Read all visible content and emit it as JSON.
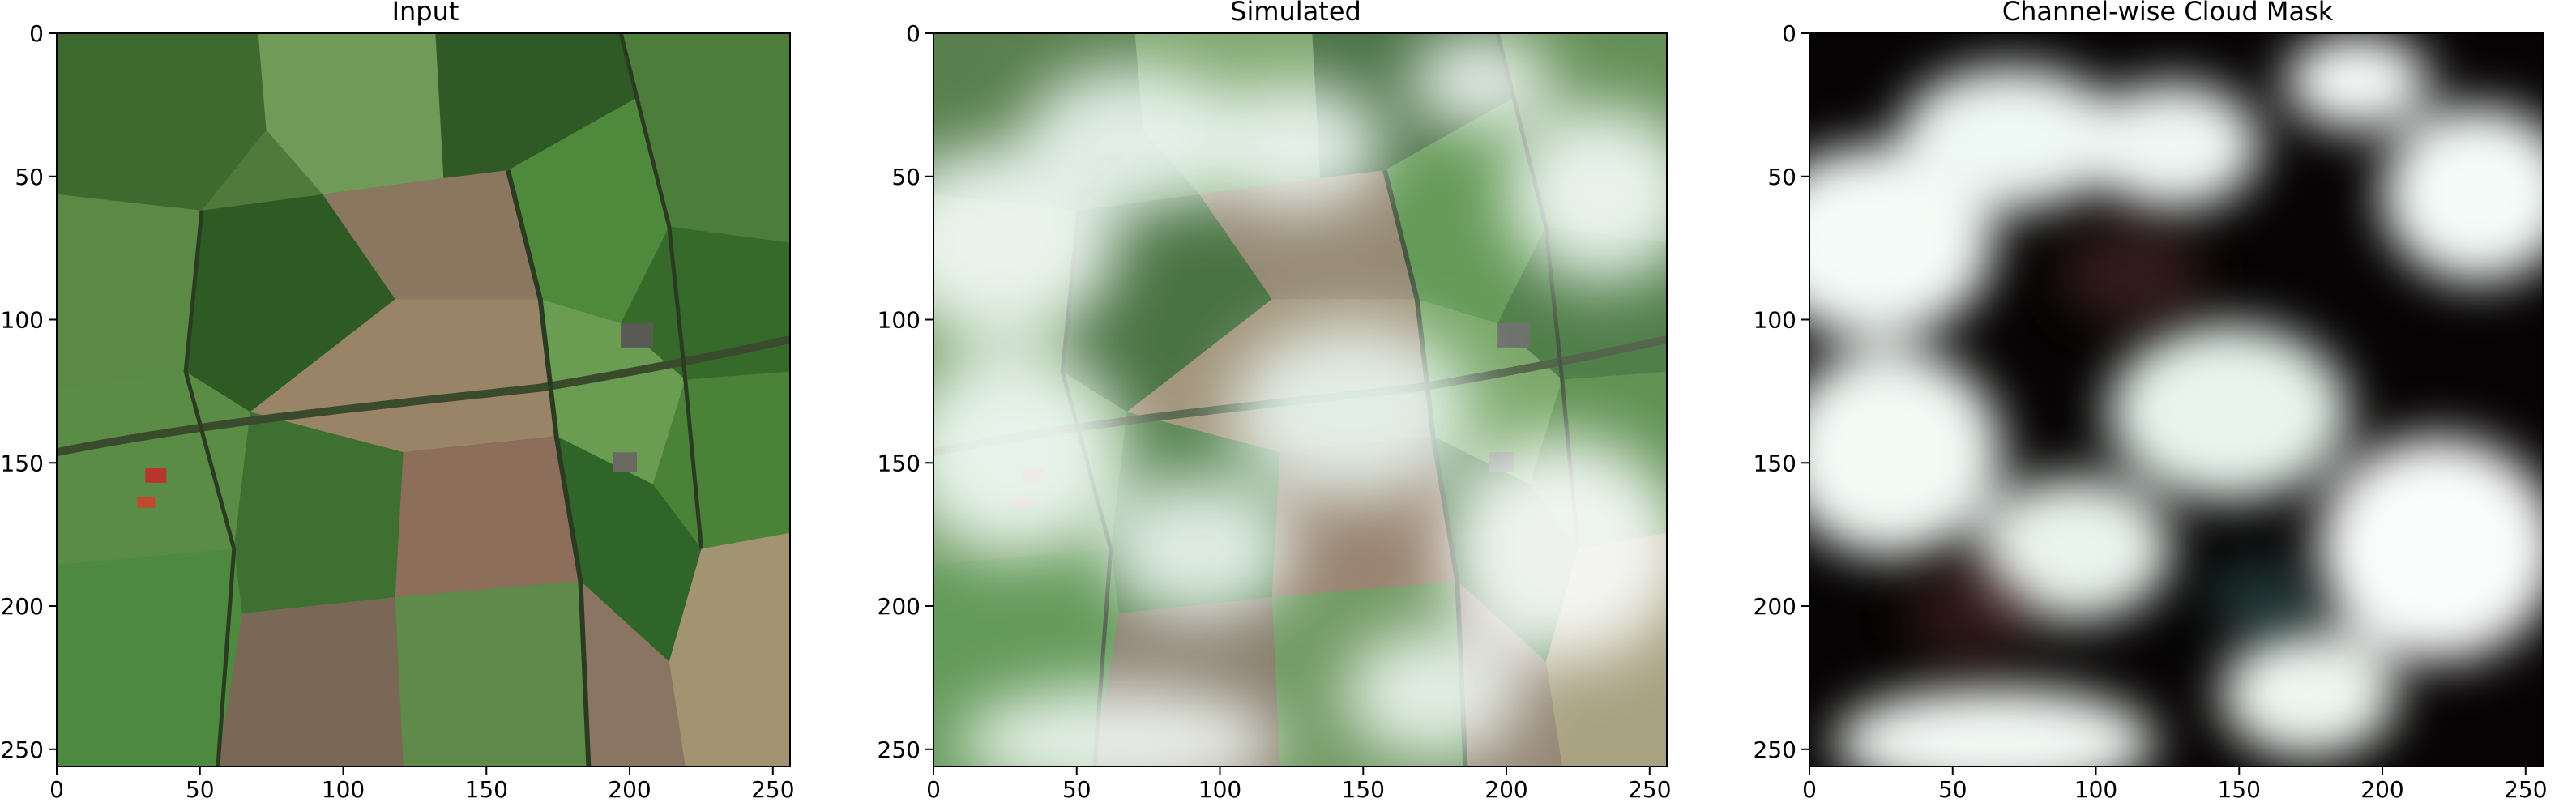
{
  "figure": {
    "panels": [
      {
        "title": "Input",
        "image": "satellite-rgb-farmland",
        "xticks": [
          "0",
          "50",
          "100",
          "150",
          "200",
          "250"
        ],
        "yticks": [
          "0",
          "50",
          "100",
          "150",
          "200",
          "250"
        ]
      },
      {
        "title": "Simulated",
        "image": "satellite-rgb-with-simulated-clouds",
        "xticks": [
          "0",
          "50",
          "100",
          "150",
          "200",
          "250"
        ],
        "yticks": [
          "0",
          "50",
          "100",
          "150",
          "200",
          "250"
        ]
      },
      {
        "title": "Channel-wise Cloud Mask",
        "image": "cloud-mask-channelwise",
        "xticks": [
          "0",
          "50",
          "100",
          "150",
          "200",
          "250"
        ],
        "yticks": [
          "0",
          "50",
          "100",
          "150",
          "200",
          "250"
        ]
      }
    ],
    "tick_values": [
      0,
      50,
      100,
      150,
      200,
      250
    ],
    "extent": [
      0,
      256
    ]
  }
}
